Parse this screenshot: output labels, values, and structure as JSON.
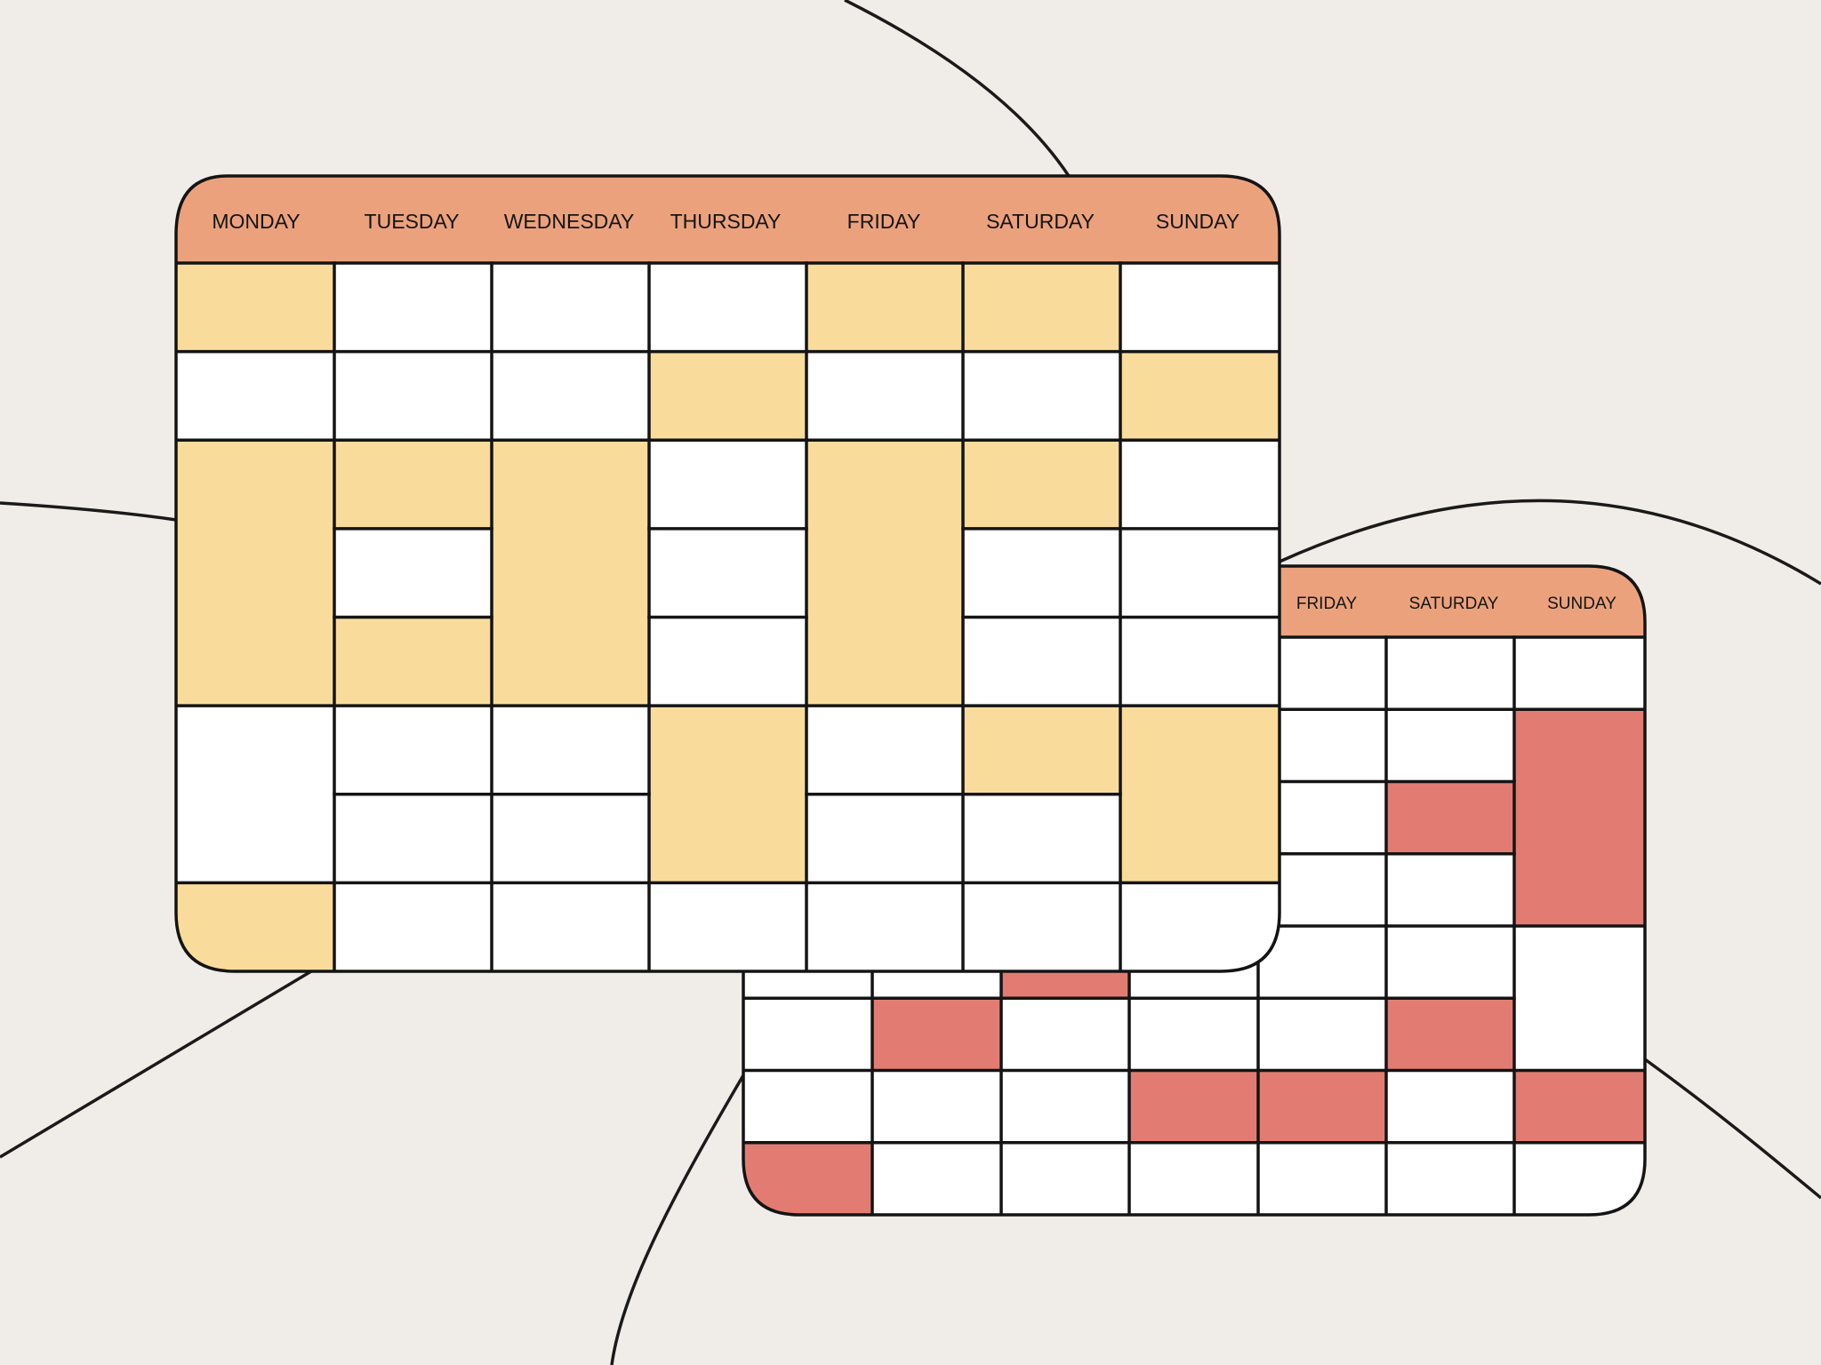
{
  "colors": {
    "background": "#f0ece8",
    "header": "#eba27c",
    "cell_empty": "#ffffff",
    "front_event": "#f9dc9c",
    "back_event": "#e27c72",
    "line": "#141414"
  },
  "front_calendar": {
    "days": [
      "MONDAY",
      "TUESDAY",
      "WEDNESDAY",
      "THURSDAY",
      "FRIDAY",
      "SATURDAY",
      "SUNDAY"
    ],
    "slot_rows": 8,
    "blocks": [
      [
        {
          "span": 1,
          "filled": true
        },
        {
          "span": 1,
          "filled": false
        },
        {
          "span": 3,
          "filled": true
        },
        {
          "span": 2,
          "filled": false
        },
        {
          "span": 1,
          "filled": true
        },
        {
          "span": 1,
          "filled": false
        }
      ],
      [
        {
          "span": 1,
          "filled": false
        },
        {
          "span": 1,
          "filled": false
        },
        {
          "span": 1,
          "filled": true
        },
        {
          "span": 1,
          "filled": false
        },
        {
          "span": 1,
          "filled": true
        },
        {
          "span": 1,
          "filled": false
        },
        {
          "span": 1,
          "filled": false
        },
        {
          "span": 1,
          "filled": false
        }
      ],
      [
        {
          "span": 1,
          "filled": false
        },
        {
          "span": 1,
          "filled": false
        },
        {
          "span": 3,
          "filled": true
        },
        {
          "span": 1,
          "filled": false
        },
        {
          "span": 1,
          "filled": false
        },
        {
          "span": 1,
          "filled": false
        }
      ],
      [
        {
          "span": 1,
          "filled": false
        },
        {
          "span": 1,
          "filled": true
        },
        {
          "span": 1,
          "filled": false
        },
        {
          "span": 1,
          "filled": false
        },
        {
          "span": 1,
          "filled": false
        },
        {
          "span": 2,
          "filled": true
        },
        {
          "span": 1,
          "filled": false
        }
      ],
      [
        {
          "span": 1,
          "filled": true
        },
        {
          "span": 1,
          "filled": false
        },
        {
          "span": 3,
          "filled": true
        },
        {
          "span": 1,
          "filled": false
        },
        {
          "span": 1,
          "filled": false
        },
        {
          "span": 1,
          "filled": false
        }
      ],
      [
        {
          "span": 1,
          "filled": true
        },
        {
          "span": 1,
          "filled": false
        },
        {
          "span": 1,
          "filled": true
        },
        {
          "span": 1,
          "filled": false
        },
        {
          "span": 1,
          "filled": false
        },
        {
          "span": 1,
          "filled": true
        },
        {
          "span": 1,
          "filled": false
        },
        {
          "span": 1,
          "filled": false
        }
      ],
      [
        {
          "span": 1,
          "filled": false
        },
        {
          "span": 1,
          "filled": true
        },
        {
          "span": 1,
          "filled": false
        },
        {
          "span": 1,
          "filled": false
        },
        {
          "span": 1,
          "filled": false
        },
        {
          "span": 2,
          "filled": true
        },
        {
          "span": 1,
          "filled": false
        }
      ]
    ]
  },
  "back_calendar": {
    "days_visible": [
      "FRIDAY",
      "SATURDAY",
      "SUNDAY"
    ],
    "columns": 7,
    "slot_rows": 8,
    "blocks": [
      [
        {
          "span": 1,
          "filled": false
        },
        {
          "span": 1,
          "filled": false
        },
        {
          "span": 1,
          "filled": false
        },
        {
          "span": 1,
          "filled": false
        },
        {
          "span": 1,
          "filled": false
        },
        {
          "span": 1,
          "filled": false
        },
        {
          "span": 1,
          "filled": false
        },
        {
          "span": 1,
          "filled": true
        }
      ],
      [
        {
          "span": 1,
          "filled": false
        },
        {
          "span": 1,
          "filled": false
        },
        {
          "span": 1,
          "filled": false
        },
        {
          "span": 1,
          "filled": false
        },
        {
          "span": 1,
          "filled": false
        },
        {
          "span": 1,
          "filled": true
        },
        {
          "span": 1,
          "filled": false
        },
        {
          "span": 1,
          "filled": false
        }
      ],
      [
        {
          "span": 1,
          "filled": false
        },
        {
          "span": 1,
          "filled": false
        },
        {
          "span": 1,
          "filled": false
        },
        {
          "span": 1,
          "filled": false
        },
        {
          "span": 1,
          "filled": true
        },
        {
          "span": 1,
          "filled": false
        },
        {
          "span": 1,
          "filled": false
        },
        {
          "span": 1,
          "filled": false
        }
      ],
      [
        {
          "span": 1,
          "filled": false
        },
        {
          "span": 1,
          "filled": false
        },
        {
          "span": 1,
          "filled": false
        },
        {
          "span": 1,
          "filled": false
        },
        {
          "span": 1,
          "filled": false
        },
        {
          "span": 1,
          "filled": false
        },
        {
          "span": 1,
          "filled": true
        },
        {
          "span": 1,
          "filled": false
        }
      ],
      [
        {
          "span": 1,
          "filled": false
        },
        {
          "span": 1,
          "filled": false
        },
        {
          "span": 1,
          "filled": false
        },
        {
          "span": 1,
          "filled": false
        },
        {
          "span": 1,
          "filled": false
        },
        {
          "span": 1,
          "filled": false
        },
        {
          "span": 1,
          "filled": true
        },
        {
          "span": 1,
          "filled": false
        }
      ],
      [
        {
          "span": 1,
          "filled": false
        },
        {
          "span": 1,
          "filled": false
        },
        {
          "span": 1,
          "filled": true
        },
        {
          "span": 1,
          "filled": false
        },
        {
          "span": 1,
          "filled": false
        },
        {
          "span": 1,
          "filled": true
        },
        {
          "span": 1,
          "filled": false
        },
        {
          "span": 1,
          "filled": false
        }
      ],
      [
        {
          "span": 1,
          "filled": false
        },
        {
          "span": 3,
          "filled": true
        },
        {
          "span": 2,
          "filled": false
        },
        {
          "span": 1,
          "filled": true
        },
        {
          "span": 1,
          "filled": false
        }
      ]
    ]
  }
}
